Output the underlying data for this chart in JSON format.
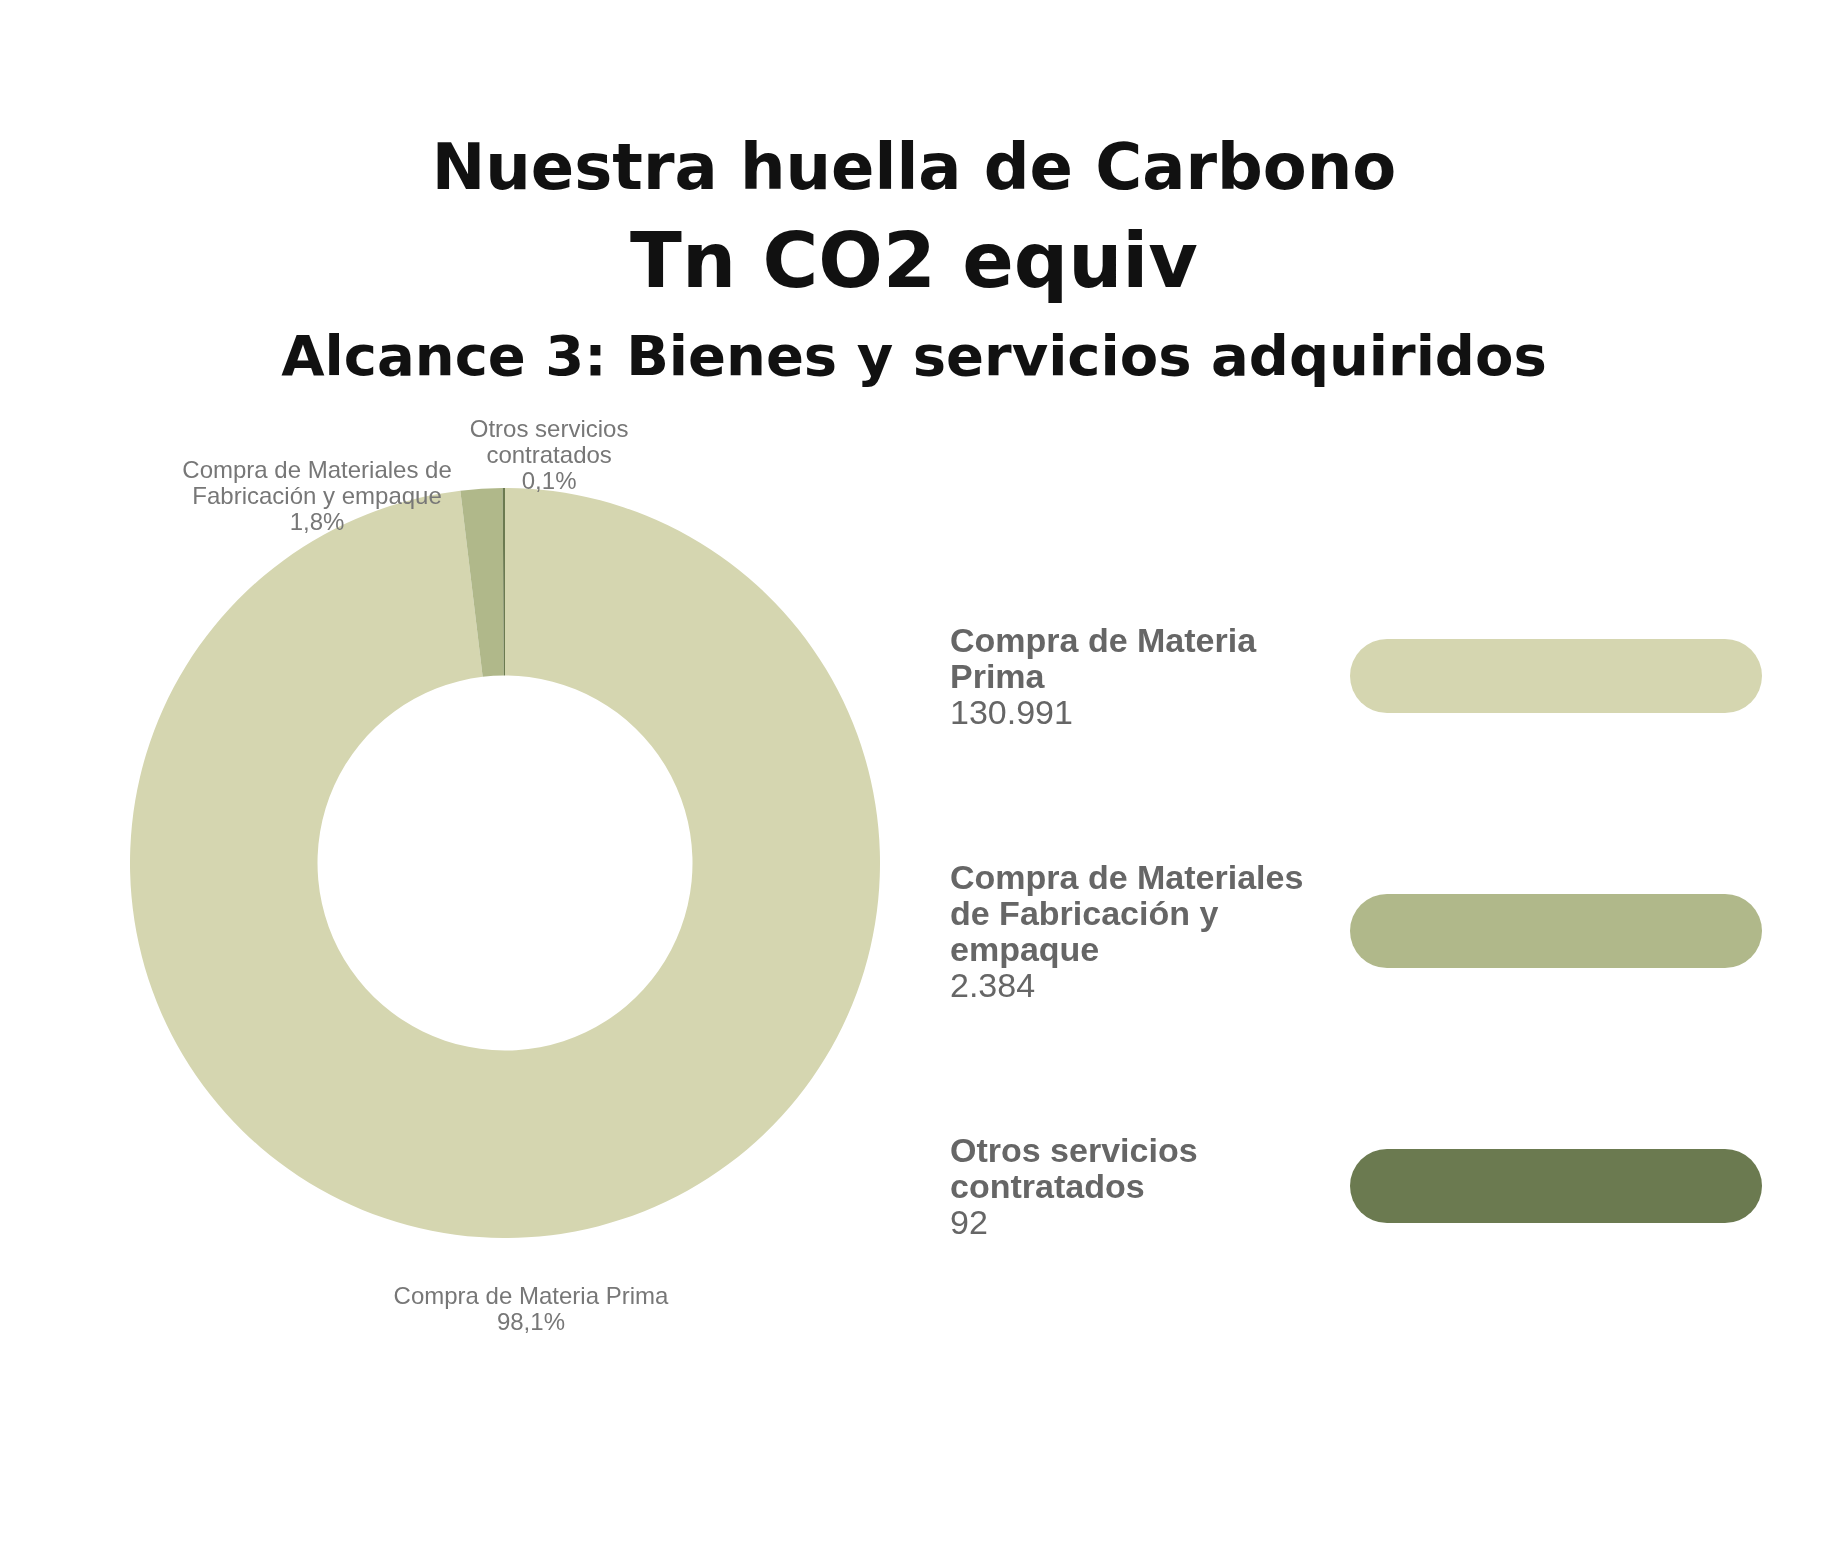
{
  "chart_data": [
    {
      "type": "donut",
      "title": "Nuestra huella de Carbono",
      "subtitle": "Tn CO2 equiv",
      "annotations": [
        "Alcance 3: Bienes y servicios adquiridos"
      ],
      "categories": [
        "Compra de Materia Prima",
        "Compra de Materiales de Fabricación y empaque",
        "Otros servicios contratados"
      ],
      "values": [
        98.1,
        1.8,
        0.1
      ],
      "value_labels": [
        "98,1%",
        "1,8%",
        "0,1%"
      ],
      "colors": [
        "#d5d6b0",
        "#b0b88a",
        "#6b7a50"
      ]
    },
    {
      "type": "other",
      "categories": [
        "Compra de Materia Prima",
        "Compra de Materiales de Fabricación y empaque",
        "Otros servicios contratados"
      ],
      "value_labels": [
        "130.991",
        "2.384",
        "92"
      ],
      "colors": [
        "#d5d6b0",
        "#b0b88a",
        "#6b7a50"
      ]
    }
  ]
}
